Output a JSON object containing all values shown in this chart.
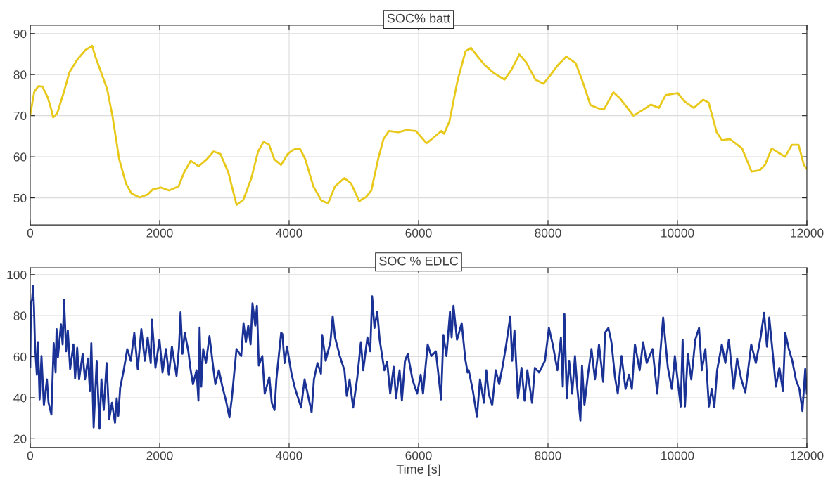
{
  "chart_data": [
    {
      "type": "line",
      "title": "SOC% batt",
      "xlim": [
        0,
        12000
      ],
      "ylim": [
        43.4,
        92
      ],
      "xticks": [
        0,
        2000,
        4000,
        6000,
        8000,
        10000,
        12000
      ],
      "yticks": [
        50,
        60,
        70,
        80,
        90
      ],
      "grid": true,
      "x": [
        0,
        62,
        125,
        187,
        271,
        333,
        354,
        417,
        521,
        604,
        729,
        854,
        958,
        1000,
        1083,
        1188,
        1271,
        1375,
        1479,
        1563,
        1688,
        1813,
        1896,
        2021,
        2146,
        2292,
        2375,
        2479,
        2604,
        2729,
        2833,
        2938,
        3063,
        3188,
        3292,
        3417,
        3521,
        3604,
        3688,
        3771,
        3875,
        3979,
        4063,
        4167,
        4250,
        4375,
        4500,
        4604,
        4708,
        4854,
        4958,
        5083,
        5188,
        5271,
        5375,
        5458,
        5542,
        5688,
        5813,
        5959,
        6124,
        6249,
        6353,
        6394,
        6477,
        6602,
        6726,
        6809,
        6913,
        7017,
        7162,
        7328,
        7432,
        7556,
        7660,
        7805,
        7929,
        8033,
        8158,
        8282,
        8427,
        8531,
        8656,
        8760,
        8864,
        9009,
        9113,
        9320,
        9444,
        9590,
        9714,
        9818,
        10004,
        10108,
        10253,
        10398,
        10481,
        10606,
        10689,
        10813,
        11000,
        11145,
        11269,
        11352,
        11456,
        11560,
        11664,
        11768,
        11871,
        11954,
        12000
      ],
      "series": [
        {
          "color": "#e8c818",
          "values": [
            70.2,
            75.8,
            77.2,
            77.1,
            74.4,
            71.1,
            69.6,
            70.6,
            75.8,
            80.5,
            83.7,
            86.0,
            87.0,
            84.7,
            81.1,
            76.5,
            69.9,
            59.4,
            53.5,
            51.1,
            50.1,
            50.8,
            52.1,
            52.5,
            51.8,
            52.8,
            56.1,
            59.0,
            57.7,
            59.4,
            61.3,
            60.7,
            56.1,
            48.3,
            49.5,
            54.8,
            61.3,
            63.6,
            63.0,
            59.4,
            58.0,
            60.7,
            61.7,
            62.0,
            59.4,
            52.8,
            49.3,
            48.7,
            52.8,
            54.8,
            53.5,
            49.2,
            50.2,
            51.8,
            59.4,
            64.3,
            66.3,
            66.0,
            66.5,
            66.3,
            63.3,
            64.9,
            66.3,
            65.6,
            68.6,
            78.5,
            85.7,
            86.5,
            84.4,
            82.4,
            80.4,
            78.8,
            81.1,
            84.9,
            83.1,
            78.8,
            77.8,
            79.8,
            82.4,
            84.4,
            82.8,
            78.5,
            72.6,
            71.9,
            71.5,
            75.7,
            74.2,
            70.0,
            71.2,
            72.7,
            71.9,
            75.0,
            75.5,
            73.5,
            71.9,
            73.9,
            73.2,
            66.0,
            64.0,
            64.3,
            62.0,
            56.4,
            56.7,
            58.0,
            62.0,
            61.0,
            60.0,
            62.9,
            62.9,
            58.0,
            57.0
          ]
        }
      ]
    },
    {
      "type": "line",
      "title": "SOC % EDLC",
      "xlabel": "Time [s]",
      "xlim": [
        0,
        12000
      ],
      "ylim": [
        15.7,
        103.3
      ],
      "xticks": [
        0,
        2000,
        4000,
        6000,
        8000,
        10000,
        12000
      ],
      "yticks": [
        20,
        40,
        60,
        80,
        100
      ],
      "grid": true,
      "x": [
        0,
        11,
        29,
        44,
        58,
        73,
        102,
        120,
        145,
        174,
        211,
        258,
        283,
        327,
        363,
        392,
        407,
        428,
        475,
        501,
        523,
        555,
        581,
        617,
        668,
        693,
        726,
        755,
        810,
        846,
        893,
        922,
        944,
        980,
        1027,
        1071,
        1100,
        1136,
        1180,
        1220,
        1263,
        1310,
        1336,
        1361,
        1390,
        1445,
        1499,
        1554,
        1608,
        1662,
        1717,
        1771,
        1815,
        1862,
        1880,
        1935,
        1997,
        2044,
        2098,
        2142,
        2189,
        2261,
        2298,
        2323,
        2352,
        2388,
        2443,
        2479,
        2515,
        2570,
        2599,
        2617,
        2642,
        2672,
        2715,
        2770,
        2824,
        2860,
        2915,
        2969,
        3024,
        3078,
        3115,
        3187,
        3260,
        3296,
        3332,
        3369,
        3405,
        3434,
        3477,
        3503,
        3532,
        3586,
        3623,
        3695,
        3732,
        3775,
        3804,
        3877,
        3895,
        3931,
        3967,
        4040,
        4094,
        4185,
        4239,
        4348,
        4384,
        4438,
        4493,
        4511,
        4565,
        4638,
        4674,
        4710,
        4783,
        4855,
        4891,
        4935,
        4989,
        5054,
        5109,
        5145,
        5210,
        5254,
        5283,
        5319,
        5362,
        5399,
        5471,
        5514,
        5562,
        5616,
        5652,
        5707,
        5743,
        5790,
        5833,
        5906,
        5978,
        6033,
        6069,
        6141,
        6196,
        6268,
        6348,
        6384,
        6431,
        6486,
        6511,
        6540,
        6594,
        6667,
        6721,
        6757,
        6775,
        6840,
        6902,
        6949,
        7011,
        7047,
        7083,
        7138,
        7192,
        7246,
        7301,
        7355,
        7417,
        7446,
        7482,
        7536,
        7591,
        7638,
        7681,
        7754,
        7797,
        7862,
        7953,
        8014,
        8073,
        8145,
        8200,
        8229,
        8254,
        8290,
        8327,
        8374,
        8417,
        8454,
        8501,
        8526,
        8563,
        8617,
        8672,
        8726,
        8788,
        8853,
        8882,
        8933,
        8980,
        9035,
        9078,
        9136,
        9198,
        9252,
        9296,
        9343,
        9416,
        9470,
        9525,
        9616,
        9688,
        9743,
        9779,
        9852,
        9913,
        9960,
        10051,
        10080,
        10116,
        10160,
        10214,
        10276,
        10334,
        10377,
        10432,
        10486,
        10530,
        10570,
        10613,
        10686,
        10740,
        10795,
        10868,
        10922,
        10987,
        11049,
        11140,
        11212,
        11285,
        11339,
        11383,
        11419,
        11466,
        11521,
        11575,
        11630,
        11666,
        11721,
        11775,
        11830,
        11884,
        11931,
        11975,
        12000
      ],
      "series": [
        {
          "color": "#1a3296",
          "values": [
            55.2,
            86.5,
            87.7,
            94.5,
            84.3,
            66.0,
            51.2,
            67.1,
            39.2,
            60.3,
            36.3,
            48.9,
            37.5,
            31.8,
            66.6,
            52.3,
            73.4,
            59.7,
            75.7,
            66.0,
            87.7,
            62.6,
            72.8,
            54.0,
            66.0,
            49.4,
            64.3,
            48.9,
            61.4,
            48.9,
            59.1,
            43.2,
            66.6,
            25.5,
            58.0,
            24.9,
            48.9,
            34.0,
            56.9,
            29.5,
            37.5,
            27.8,
            39.7,
            31.2,
            44.9,
            53.4,
            63.7,
            58.0,
            71.7,
            54.0,
            73.4,
            58.0,
            69.4,
            56.9,
            78.0,
            54.6,
            68.3,
            52.3,
            63.7,
            51.2,
            64.9,
            50.6,
            64.3,
            81.6,
            61.4,
            71.7,
            62.6,
            53.4,
            46.6,
            53.4,
            38.6,
            74.2,
            45.4,
            63.7,
            56.9,
            70.0,
            55.7,
            46.6,
            53.4,
            45.4,
            38.6,
            30.4,
            39.7,
            63.7,
            60.3,
            76.3,
            67.1,
            75.1,
            66.0,
            86.0,
            75.1,
            84.8,
            55.7,
            60.3,
            42.0,
            50.0,
            37.5,
            34.0,
            48.9,
            71.7,
            71.1,
            56.9,
            64.9,
            51.2,
            44.3,
            35.2,
            48.9,
            32.9,
            48.9,
            56.9,
            51.7,
            70.6,
            58.0,
            67.1,
            79.7,
            69.4,
            60.3,
            53.4,
            40.9,
            48.9,
            35.2,
            50.0,
            67.1,
            53.4,
            69.4,
            62.6,
            89.4,
            74.0,
            82.0,
            68.3,
            53.4,
            57.6,
            42.0,
            55.1,
            39.7,
            53.4,
            38.6,
            58.0,
            61.4,
            48.9,
            42.0,
            51.2,
            42.0,
            66.0,
            60.3,
            62.6,
            39.2,
            70.6,
            60.3,
            82.0,
            69.4,
            84.8,
            68.3,
            76.3,
            59.1,
            52.3,
            53.4,
            43.2,
            30.6,
            48.9,
            37.5,
            53.4,
            42.0,
            36.3,
            53.4,
            46.6,
            55.7,
            66.0,
            79.7,
            58.0,
            72.8,
            39.7,
            54.6,
            38.6,
            53.4,
            37.5,
            54.6,
            52.3,
            58.0,
            74.0,
            66.0,
            53.4,
            69.4,
            45.4,
            80.8,
            39.7,
            58.0,
            42.0,
            60.3,
            44.3,
            28.9,
            55.7,
            36.3,
            51.2,
            63.7,
            48.9,
            66.0,
            47.7,
            71.7,
            74.0,
            67.1,
            50.0,
            42.0,
            60.3,
            44.3,
            51.2,
            44.3,
            66.0,
            53.4,
            67.1,
            56.9,
            63.7,
            42.0,
            64.9,
            79.1,
            54.6,
            44.3,
            60.3,
            35.7,
            68.3,
            35.7,
            61.4,
            48.9,
            68.3,
            74.0,
            53.4,
            63.7,
            35.7,
            44.3,
            35.4,
            53.4,
            66.0,
            56.9,
            68.3,
            44.3,
            59.1,
            48.9,
            42.6,
            66.0,
            56.9,
            69.4,
            81.4,
            64.9,
            79.1,
            63.7,
            45.4,
            54.6,
            43.2,
            71.7,
            63.7,
            58.0,
            48.9,
            44.3,
            33.5,
            54.0,
            42.0
          ]
        }
      ]
    }
  ]
}
